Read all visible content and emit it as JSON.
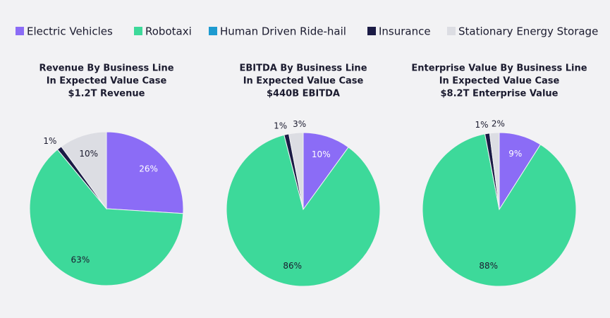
{
  "chart_data": [
    {
      "type": "pie",
      "title": "Revenue By Business Line",
      "subtitle": "In Expected Value Case",
      "caption": "$1.2T Revenue",
      "categories": [
        "Electric Vehicles",
        "Robotaxi",
        "Human Driven Ride-hail",
        "Insurance",
        "Stationary Energy Storage"
      ],
      "values": [
        26,
        63,
        0,
        1,
        10
      ],
      "value_labels": [
        "26%",
        "63%",
        null,
        "1%",
        "10%"
      ],
      "colors": [
        "#8b6cf6",
        "#3dd99a",
        "#1e9bd0",
        "#1b1b45",
        "#dcdde3"
      ]
    },
    {
      "type": "pie",
      "title": "EBITDA By Business Line",
      "subtitle": "In Expected Value Case",
      "caption": "$440B EBITDA",
      "categories": [
        "Electric Vehicles",
        "Robotaxi",
        "Human Driven Ride-hail",
        "Insurance",
        "Stationary Energy Storage"
      ],
      "values": [
        10,
        86,
        0,
        1,
        3
      ],
      "value_labels": [
        "10%",
        "86%",
        null,
        "1%",
        "3%"
      ],
      "colors": [
        "#8b6cf6",
        "#3dd99a",
        "#1e9bd0",
        "#1b1b45",
        "#dcdde3"
      ]
    },
    {
      "type": "pie",
      "title": "Enterprise Value By Business Line",
      "subtitle": "In Expected Value Case",
      "caption": "$8.2T Enterprise Value",
      "categories": [
        "Electric Vehicles",
        "Robotaxi",
        "Human Driven Ride-hail",
        "Insurance",
        "Stationary Energy Storage"
      ],
      "values": [
        9,
        88,
        0,
        1,
        2
      ],
      "value_labels": [
        "9%",
        "88%",
        null,
        "1%",
        "2%"
      ],
      "colors": [
        "#8b6cf6",
        "#3dd99a",
        "#1e9bd0",
        "#1b1b45",
        "#dcdde3"
      ]
    }
  ]
}
